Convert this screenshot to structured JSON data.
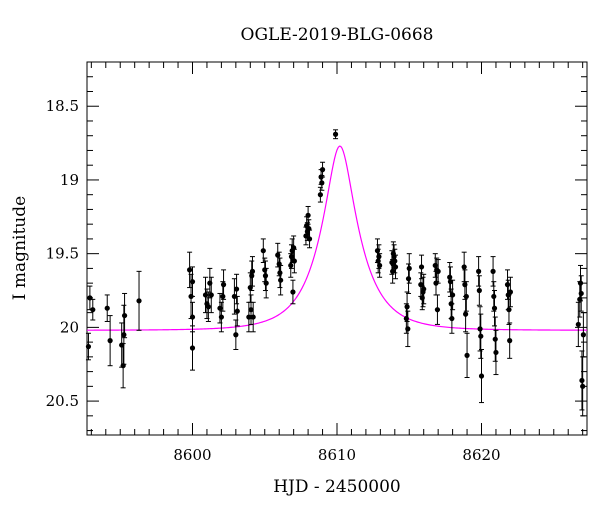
{
  "chart_data": {
    "type": "scatter",
    "title": "OGLE-2019-BLG-0668",
    "xlabel": "HJD - 2450000",
    "ylabel": "I magnitude",
    "xlim": [
      8592.7,
      8627.3
    ],
    "ylim": [
      20.73,
      18.2
    ],
    "y_inverted": true,
    "xticks": [
      8600,
      8610,
      8620
    ],
    "yticks": [
      18.5,
      19,
      19.5,
      20,
      20.5
    ],
    "grid": false,
    "model_color": "#ff00ff",
    "point_color": "#000000",
    "model": {
      "name": "",
      "baseline": 20.02,
      "peak_mag": 18.77,
      "t0": 8610.2,
      "tE": 2.6
    },
    "series": [
      {
        "name": "",
        "points": [
          [
            8592.9,
            19.8,
            0.08
          ],
          [
            8593.1,
            19.88,
            0.07
          ],
          [
            8592.8,
            20.13,
            0.09
          ],
          [
            8594.1,
            19.87,
            0.09
          ],
          [
            8594.3,
            20.09,
            0.17
          ],
          [
            8595.1,
            20.12,
            0.15
          ],
          [
            8595.2,
            20.26,
            0.15
          ],
          [
            8595.25,
            20.05,
            0.2
          ],
          [
            8595.3,
            19.92,
            0.15
          ],
          [
            8596.3,
            19.82,
            0.2
          ],
          [
            8599.8,
            19.61,
            0.12
          ],
          [
            8599.9,
            19.79,
            0.15
          ],
          [
            8600.0,
            19.69,
            0.1
          ],
          [
            8600.0,
            19.93,
            0.1
          ],
          [
            8600.0,
            20.14,
            0.15
          ],
          [
            8600.9,
            19.78,
            0.12
          ],
          [
            8601.0,
            19.84,
            0.1
          ],
          [
            8601.1,
            19.86,
            0.1
          ],
          [
            8601.2,
            19.7,
            0.1
          ],
          [
            8601.3,
            19.78,
            0.12
          ],
          [
            8601.9,
            19.87,
            0.1
          ],
          [
            8602.0,
            19.93,
            0.1
          ],
          [
            8602.1,
            19.79,
            0.1
          ],
          [
            8602.15,
            19.71,
            0.1
          ],
          [
            8602.9,
            19.79,
            0.12
          ],
          [
            8603.0,
            20.05,
            0.1
          ],
          [
            8603.05,
            19.74,
            0.1
          ],
          [
            8603.1,
            19.89,
            0.1
          ],
          [
            8603.9,
            19.93,
            0.1
          ],
          [
            8604.0,
            19.73,
            0.1
          ],
          [
            8604.05,
            19.88,
            0.1
          ],
          [
            8604.1,
            19.65,
            0.1
          ],
          [
            8604.15,
            19.62,
            0.1
          ],
          [
            8604.2,
            19.93,
            0.1
          ],
          [
            8604.9,
            19.48,
            0.08
          ],
          [
            8605.0,
            19.61,
            0.08
          ],
          [
            8605.05,
            19.65,
            0.1
          ],
          [
            8605.1,
            19.7,
            0.1
          ],
          [
            8605.9,
            19.51,
            0.08
          ],
          [
            8606.0,
            19.57,
            0.08
          ],
          [
            8606.05,
            19.63,
            0.1
          ],
          [
            8606.1,
            19.68,
            0.1
          ],
          [
            8606.8,
            19.58,
            0.08
          ],
          [
            8606.85,
            19.52,
            0.08
          ],
          [
            8606.9,
            19.48,
            0.08
          ],
          [
            8606.95,
            19.76,
            0.08
          ],
          [
            8607.0,
            19.46,
            0.08
          ],
          [
            8607.05,
            19.55,
            0.08
          ],
          [
            8607.85,
            19.38,
            0.06
          ],
          [
            8607.9,
            19.31,
            0.06
          ],
          [
            8607.95,
            19.35,
            0.06
          ],
          [
            8608.0,
            19.24,
            0.06
          ],
          [
            8608.05,
            19.33,
            0.06
          ],
          [
            8608.1,
            19.4,
            0.06
          ],
          [
            8608.85,
            19.1,
            0.05
          ],
          [
            8608.9,
            18.98,
            0.05
          ],
          [
            8608.95,
            19.02,
            0.05
          ],
          [
            8609.0,
            18.93,
            0.05
          ],
          [
            8609.9,
            18.69,
            0.03
          ],
          [
            8612.8,
            19.48,
            0.08
          ],
          [
            8612.85,
            19.55,
            0.08
          ],
          [
            8612.9,
            19.52,
            0.08
          ],
          [
            8612.95,
            19.58,
            0.08
          ],
          [
            8613.8,
            19.56,
            0.08
          ],
          [
            8613.85,
            19.62,
            0.08
          ],
          [
            8613.9,
            19.5,
            0.08
          ],
          [
            8613.95,
            19.52,
            0.08
          ],
          [
            8614.0,
            19.55,
            0.08
          ],
          [
            8614.05,
            19.59,
            0.08
          ],
          [
            8614.8,
            19.94,
            0.1
          ],
          [
            8614.85,
            19.86,
            0.1
          ],
          [
            8614.9,
            20.01,
            0.12
          ],
          [
            8614.95,
            19.67,
            0.1
          ],
          [
            8615.0,
            19.6,
            0.1
          ],
          [
            8615.8,
            19.71,
            0.08
          ],
          [
            8615.85,
            19.59,
            0.08
          ],
          [
            8615.9,
            19.8,
            0.08
          ],
          [
            8615.95,
            19.76,
            0.1
          ],
          [
            8616.0,
            19.74,
            0.1
          ],
          [
            8616.8,
            19.58,
            0.08
          ],
          [
            8616.85,
            19.7,
            0.08
          ],
          [
            8616.9,
            19.61,
            0.08
          ],
          [
            8616.95,
            19.88,
            0.1
          ],
          [
            8617.0,
            19.62,
            0.08
          ],
          [
            8617.8,
            19.66,
            0.1
          ],
          [
            8617.85,
            19.69,
            0.1
          ],
          [
            8617.9,
            19.84,
            0.1
          ],
          [
            8617.95,
            19.94,
            0.1
          ],
          [
            8618.0,
            19.78,
            0.1
          ],
          [
            8618.8,
            19.59,
            0.1
          ],
          [
            8618.85,
            19.71,
            0.1
          ],
          [
            8618.9,
            19.91,
            0.12
          ],
          [
            8618.95,
            19.79,
            0.1
          ],
          [
            8619.0,
            20.19,
            0.15
          ],
          [
            8619.8,
            19.62,
            0.1
          ],
          [
            8619.85,
            19.75,
            0.1
          ],
          [
            8619.9,
            20.01,
            0.15
          ],
          [
            8619.95,
            20.06,
            0.15
          ],
          [
            8620.0,
            20.33,
            0.18
          ],
          [
            8620.8,
            19.62,
            0.1
          ],
          [
            8620.85,
            19.79,
            0.1
          ],
          [
            8620.9,
            19.87,
            0.12
          ],
          [
            8620.95,
            20.08,
            0.15
          ],
          [
            8621.0,
            20.17,
            0.15
          ],
          [
            8621.8,
            19.71,
            0.1
          ],
          [
            8621.85,
            19.78,
            0.1
          ],
          [
            8621.9,
            19.88,
            0.1
          ],
          [
            8621.95,
            20.09,
            0.12
          ],
          [
            8622.0,
            19.76,
            0.1
          ],
          [
            8626.7,
            19.98,
            0.15
          ],
          [
            8626.8,
            19.81,
            0.12
          ],
          [
            8626.85,
            19.7,
            0.12
          ],
          [
            8626.9,
            19.77,
            0.12
          ],
          [
            8626.95,
            20.36,
            0.2
          ],
          [
            8627.0,
            20.4,
            0.2
          ],
          [
            8627.05,
            20.05,
            0.15
          ]
        ]
      }
    ]
  }
}
